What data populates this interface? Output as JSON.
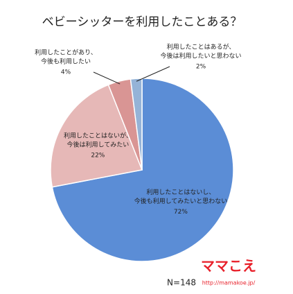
{
  "chart_data": {
    "type": "pie",
    "title": "ベビーシッターを利用したことある？",
    "categories": [
      [
        "利用したことはないし、",
        "今後も利用してみたいと思わない"
      ],
      [
        "利用したことはないが、",
        "今後は利用してみたい"
      ],
      [
        "利用したことがあり、",
        "今後も利用したい"
      ],
      [
        "利用したことはあるが、",
        "今後は利用したいと思わない"
      ]
    ],
    "values": [
      72,
      22,
      4,
      2
    ],
    "value_labels": [
      "72%",
      "22%",
      "4%",
      "2%"
    ],
    "colors": [
      "#5b8dd6",
      "#e6b8b7",
      "#d99594",
      "#95b3d7"
    ],
    "annotation": "N=148"
  },
  "logo": {
    "name": "ママこえ",
    "url": "http://mamakoe.jp/"
  }
}
